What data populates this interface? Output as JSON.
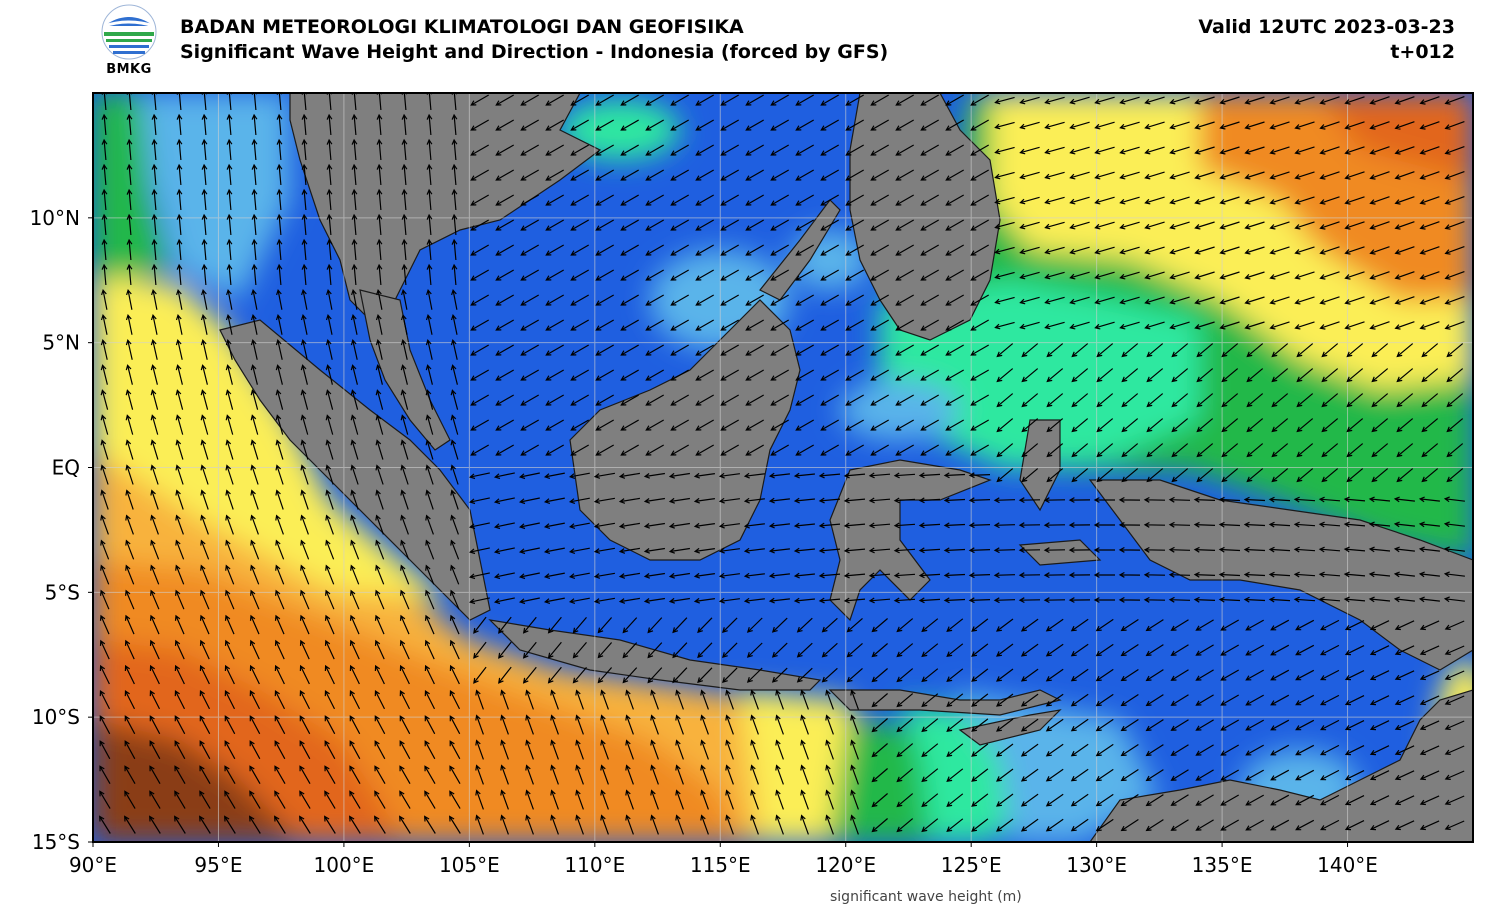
{
  "header": {
    "agency": "BADAN METEOROLOGI KLIMATOLOGI DAN GEOFISIKA",
    "product": "Significant Wave Height and Direction - Indonesia (forced by GFS)",
    "valid": "Valid 12UTC 2023-03-23",
    "step": "t+012",
    "logo_text": "BMKG"
  },
  "map": {
    "lon_range": [
      90,
      145
    ],
    "lat_range": [
      -15,
      15
    ],
    "x_ticks": [
      {
        "value": 90,
        "label": "90°E"
      },
      {
        "value": 95,
        "label": "95°E"
      },
      {
        "value": 100,
        "label": "100°E"
      },
      {
        "value": 105,
        "label": "105°E"
      },
      {
        "value": 110,
        "label": "110°E"
      },
      {
        "value": 115,
        "label": "115°E"
      },
      {
        "value": 120,
        "label": "120°E"
      },
      {
        "value": 125,
        "label": "125°E"
      },
      {
        "value": 130,
        "label": "130°E"
      },
      {
        "value": 135,
        "label": "135°E"
      },
      {
        "value": 140,
        "label": "140°E"
      }
    ],
    "y_ticks": [
      {
        "value": 10,
        "label": "10°N"
      },
      {
        "value": 5,
        "label": "5°N"
      },
      {
        "value": 0,
        "label": "EQ"
      },
      {
        "value": -5,
        "label": "5°S"
      },
      {
        "value": -10,
        "label": "10°S"
      },
      {
        "value": -15,
        "label": "15°S"
      }
    ],
    "colors": {
      "land": "#7f7f7f",
      "ocean_calm": "#1f5fe0",
      "light_blue": "#5ab4ea",
      "teal": "#2fe8a0",
      "green": "#22b84a",
      "yellow": "#fbee56",
      "light_orange": "#f8b23c",
      "orange": "#f08a24",
      "dark_orange": "#e2661a",
      "brown": "#8a3e14",
      "arrow": "#000000",
      "grid": "#d0d0d0"
    }
  },
  "footer_note": "significant wave height (m)"
}
